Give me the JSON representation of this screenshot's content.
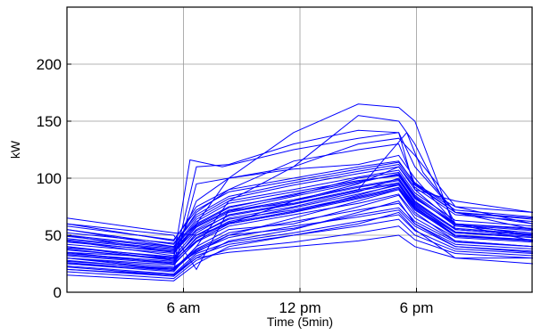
{
  "chart_data": {
    "type": "line",
    "xlabel": "Time (5min)",
    "ylabel": "kW",
    "xlim": [
      0,
      288
    ],
    "ylim": [
      0,
      250
    ],
    "x_ticks": [
      {
        "value": 72,
        "label": "6 am"
      },
      {
        "value": 144,
        "label": "12 pm"
      },
      {
        "value": 216,
        "label": "6 pm"
      }
    ],
    "y_ticks": [
      {
        "value": 0,
        "label": "0"
      },
      {
        "value": 50,
        "label": "50"
      },
      {
        "value": 100,
        "label": "100"
      },
      {
        "value": 150,
        "label": "150"
      },
      {
        "value": 200,
        "label": "200"
      }
    ],
    "grid": true,
    "line_color": "#0000ff",
    "series": [
      {
        "x": [
          0,
          66,
          80,
          100,
          140,
          180,
          210,
          220,
          240,
          288
        ],
        "y": [
          60,
          50,
          20,
          72,
          78,
          90,
          140,
          105,
          70,
          60
        ]
      },
      {
        "x": [
          0,
          66,
          76,
          96,
          140,
          180,
          205,
          215,
          240,
          288
        ],
        "y": [
          40,
          30,
          116,
          110,
          125,
          135,
          140,
          110,
          70,
          55
        ]
      },
      {
        "x": [
          0,
          66,
          80,
          100,
          140,
          180,
          205,
          215,
          240,
          288
        ],
        "y": [
          50,
          35,
          60,
          100,
          140,
          165,
          162,
          150,
          55,
          50
        ]
      },
      {
        "x": [
          0,
          66,
          80,
          100,
          140,
          180,
          205,
          215,
          240,
          288
        ],
        "y": [
          30,
          20,
          40,
          80,
          110,
          155,
          150,
          130,
          60,
          45
        ]
      },
      {
        "x": [
          0,
          66,
          80,
          100,
          140,
          180,
          205,
          215,
          240,
          288
        ],
        "y": [
          35,
          25,
          110,
          112,
          130,
          142,
          140,
          90,
          60,
          50
        ]
      },
      {
        "x": [
          0,
          66,
          80,
          100,
          140,
          180,
          205,
          215,
          240,
          288
        ],
        "y": [
          55,
          40,
          70,
          90,
          115,
          125,
          130,
          95,
          70,
          65
        ]
      },
      {
        "x": [
          0,
          66,
          80,
          100,
          140,
          180,
          205,
          215,
          240,
          288
        ],
        "y": [
          45,
          32,
          80,
          100,
          110,
          130,
          135,
          120,
          75,
          60
        ]
      },
      {
        "x": [
          0,
          66,
          80,
          100,
          140,
          180,
          205,
          215,
          240,
          288
        ],
        "y": [
          25,
          20,
          95,
          100,
          108,
          112,
          120,
          100,
          60,
          50
        ]
      },
      {
        "x": [
          0,
          66,
          80,
          100,
          140,
          180,
          205,
          215,
          240,
          288
        ],
        "y": [
          65,
          52,
          50,
          60,
          80,
          95,
          110,
          90,
          80,
          70
        ]
      },
      {
        "x": [
          0,
          66,
          80,
          100,
          140,
          180,
          205,
          215,
          240,
          288
        ],
        "y": [
          20,
          15,
          30,
          45,
          55,
          70,
          80,
          60,
          40,
          35
        ]
      },
      {
        "x": [
          0,
          66,
          80,
          100,
          140,
          180,
          205,
          215,
          240,
          288
        ],
        "y": [
          30,
          22,
          35,
          50,
          65,
          80,
          90,
          70,
          45,
          40
        ]
      },
      {
        "x": [
          0,
          66,
          80,
          100,
          140,
          180,
          205,
          215,
          240,
          288
        ],
        "y": [
          40,
          28,
          45,
          60,
          70,
          85,
          95,
          75,
          50,
          45
        ]
      },
      {
        "x": [
          0,
          66,
          80,
          100,
          140,
          180,
          205,
          215,
          240,
          288
        ],
        "y": [
          15,
          10,
          25,
          40,
          50,
          60,
          70,
          55,
          30,
          25
        ]
      },
      {
        "x": [
          0,
          66,
          80,
          100,
          140,
          180,
          205,
          215,
          240,
          288
        ],
        "y": [
          50,
          40,
          60,
          75,
          85,
          100,
          105,
          85,
          60,
          55
        ]
      },
      {
        "x": [
          0,
          66,
          80,
          100,
          140,
          180,
          205,
          215,
          240,
          288
        ],
        "y": [
          35,
          30,
          50,
          65,
          75,
          88,
          100,
          80,
          55,
          50
        ]
      },
      {
        "x": [
          0,
          66,
          80,
          100,
          140,
          180,
          205,
          215,
          240,
          288
        ],
        "y": [
          25,
          18,
          40,
          55,
          60,
          75,
          85,
          65,
          45,
          40
        ]
      },
      {
        "x": [
          0,
          66,
          80,
          100,
          140,
          180,
          205,
          215,
          240,
          288
        ],
        "y": [
          45,
          35,
          55,
          70,
          80,
          92,
          98,
          78,
          55,
          50
        ]
      },
      {
        "x": [
          0,
          66,
          80,
          100,
          140,
          180,
          205,
          215,
          240,
          288
        ],
        "y": [
          20,
          14,
          30,
          35,
          40,
          45,
          50,
          40,
          30,
          30
        ]
      },
      {
        "x": [
          0,
          66,
          80,
          100,
          140,
          180,
          205,
          215,
          240,
          288
        ],
        "y": [
          60,
          45,
          75,
          90,
          100,
          110,
          115,
          95,
          75,
          70
        ]
      },
      {
        "x": [
          0,
          66,
          80,
          100,
          140,
          180,
          205,
          215,
          240,
          288
        ],
        "y": [
          30,
          24,
          45,
          60,
          70,
          82,
          90,
          72,
          50,
          45
        ]
      },
      {
        "x": [
          0,
          66,
          80,
          100,
          140,
          180,
          205,
          215,
          240,
          288
        ],
        "y": [
          38,
          28,
          52,
          68,
          78,
          90,
          96,
          76,
          52,
          48
        ]
      },
      {
        "x": [
          0,
          66,
          80,
          100,
          140,
          180,
          205,
          215,
          240,
          288
        ],
        "y": [
          28,
          20,
          36,
          48,
          58,
          66,
          72,
          58,
          40,
          36
        ]
      },
      {
        "x": [
          0,
          66,
          80,
          100,
          140,
          180,
          205,
          215,
          240,
          288
        ],
        "y": [
          42,
          34,
          58,
          72,
          84,
          96,
          104,
          84,
          58,
          52
        ]
      },
      {
        "x": [
          0,
          66,
          80,
          100,
          140,
          180,
          205,
          215,
          240,
          288
        ],
        "y": [
          18,
          12,
          28,
          38,
          44,
          52,
          58,
          46,
          34,
          30
        ]
      },
      {
        "x": [
          0,
          66,
          80,
          100,
          140,
          180,
          205,
          215,
          240,
          288
        ],
        "y": [
          55,
          42,
          66,
          82,
          94,
          104,
          110,
          92,
          68,
          62
        ]
      },
      {
        "x": [
          0,
          66,
          80,
          100,
          140,
          180,
          205,
          215,
          240,
          288
        ],
        "y": [
          33,
          26,
          48,
          62,
          74,
          86,
          94,
          74,
          50,
          46
        ]
      },
      {
        "x": [
          0,
          66,
          80,
          100,
          140,
          180,
          205,
          215,
          240,
          288
        ],
        "y": [
          47,
          38,
          62,
          78,
          88,
          98,
          102,
          82,
          60,
          56
        ]
      },
      {
        "x": [
          0,
          66,
          80,
          100,
          140,
          180,
          205,
          215,
          240,
          288
        ],
        "y": [
          23,
          16,
          34,
          44,
          52,
          62,
          68,
          54,
          38,
          34
        ]
      },
      {
        "x": [
          0,
          66,
          80,
          100,
          140,
          180,
          205,
          215,
          240,
          288
        ],
        "y": [
          37,
          29,
          50,
          64,
          72,
          84,
          92,
          74,
          52,
          48
        ]
      },
      {
        "x": [
          0,
          66,
          80,
          100,
          140,
          180,
          205,
          215,
          240,
          288
        ],
        "y": [
          52,
          43,
          68,
          84,
          96,
          106,
          112,
          94,
          70,
          64
        ]
      },
      {
        "x": [
          0,
          66,
          80,
          100,
          140,
          180,
          205,
          215,
          240,
          288
        ],
        "y": [
          27,
          21,
          38,
          52,
          62,
          72,
          78,
          62,
          44,
          40
        ]
      },
      {
        "x": [
          0,
          66,
          80,
          100,
          140,
          180,
          205,
          215,
          240,
          288
        ],
        "y": [
          44,
          36,
          57,
          71,
          81,
          93,
          99,
          79,
          56,
          51
        ]
      },
      {
        "x": [
          0,
          66,
          80,
          100,
          140,
          180,
          205,
          215,
          240,
          288
        ],
        "y": [
          32,
          25,
          44,
          58,
          68,
          78,
          86,
          68,
          48,
          44
        ]
      },
      {
        "x": [
          0,
          66,
          80,
          100,
          140,
          180,
          205,
          215,
          240,
          288
        ],
        "y": [
          58,
          46,
          72,
          88,
          98,
          108,
          114,
          96,
          72,
          66
        ]
      },
      {
        "x": [
          0,
          66,
          80,
          100,
          140,
          180,
          205,
          215,
          240,
          288
        ],
        "y": [
          22,
          15,
          32,
          42,
          50,
          58,
          64,
          50,
          36,
          32
        ]
      },
      {
        "x": [
          0,
          66,
          80,
          100,
          140,
          180,
          205,
          215,
          240,
          288
        ],
        "y": [
          39,
          31,
          54,
          67,
          77,
          89,
          95,
          77,
          53,
          49
        ]
      },
      {
        "x": [
          0,
          66,
          80,
          100,
          140,
          180,
          205,
          215,
          240,
          288
        ],
        "y": [
          49,
          39,
          64,
          80,
          90,
          101,
          107,
          87,
          63,
          58
        ]
      },
      {
        "x": [
          0,
          66,
          80,
          100,
          140,
          180,
          205,
          215,
          240,
          288
        ],
        "y": [
          26,
          19,
          37,
          50,
          56,
          68,
          74,
          60,
          42,
          38
        ]
      },
      {
        "x": [
          0,
          66,
          80,
          100,
          140,
          180,
          205,
          215,
          240,
          288
        ],
        "y": [
          34,
          27,
          47,
          61,
          71,
          83,
          91,
          73,
          49,
          45
        ]
      },
      {
        "x": [
          0,
          66,
          80,
          100,
          140,
          180,
          205,
          215,
          240,
          288
        ],
        "y": [
          46,
          37,
          59,
          74,
          86,
          97,
          103,
          83,
          59,
          54
        ]
      }
    ]
  }
}
